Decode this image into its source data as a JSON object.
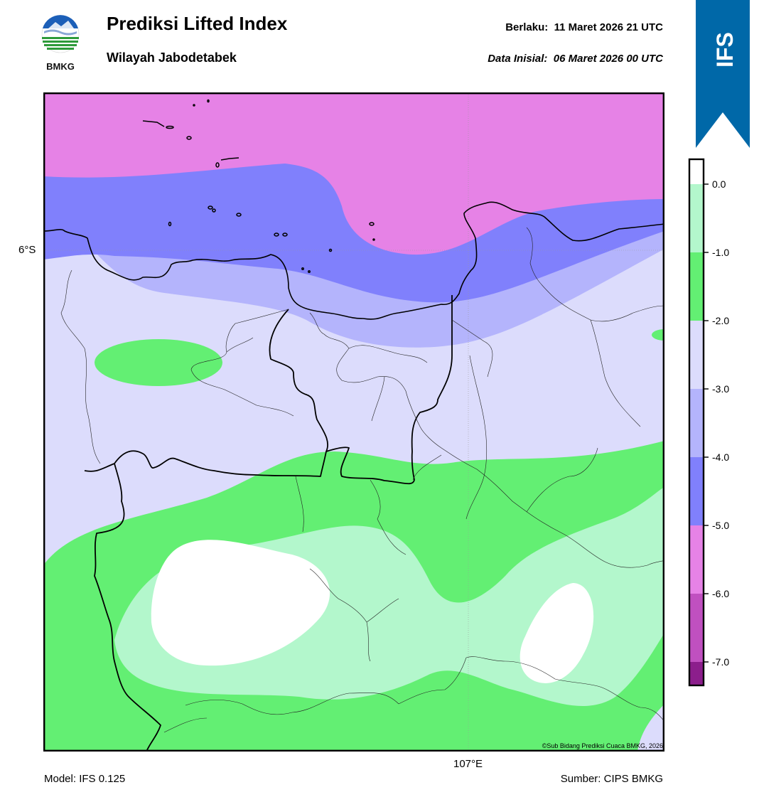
{
  "header": {
    "logo_text": "BMKG",
    "title": "Prediksi Lifted Index",
    "subtitle": "Wilayah Jabodetabek",
    "valid_label": "Berlaku:",
    "valid_value": "11 Maret 2026 21 UTC",
    "init_label": "Data Inisial:",
    "init_value": "06 Maret 2026 00 UTC"
  },
  "badge": {
    "text": "IFS",
    "color": "#0068a8"
  },
  "map": {
    "lat_label": "6°S",
    "lon_label": "107°E",
    "copyright": "©Sub Bidang Prediksi Cuaca BMKG, 2026"
  },
  "footer": {
    "model": "Model: IFS 0.125",
    "source": "Sumber: CIPS BMKG"
  },
  "legend": {
    "ticks": [
      "0.0",
      "-1.0",
      "-2.0",
      "-3.0",
      "-4.0",
      "-5.0",
      "-6.0",
      "-7.0"
    ],
    "bands": [
      {
        "range": "> 0",
        "color": "#ffffff"
      },
      {
        "range": "0 to -1",
        "color": "#b3f7cc"
      },
      {
        "range": "-1 to -2",
        "color": "#63ef73"
      },
      {
        "range": "-2 to -3",
        "color": "#dcdcfc"
      },
      {
        "range": "-3 to -4",
        "color": "#b4b4fc"
      },
      {
        "range": "-4 to -5",
        "color": "#8080fc"
      },
      {
        "range": "-5 to -6",
        "color": "#e682e6"
      },
      {
        "range": "-6 to -7",
        "color": "#c050c0"
      },
      {
        "range": "< -7",
        "color": "#8c1e8c"
      }
    ]
  }
}
